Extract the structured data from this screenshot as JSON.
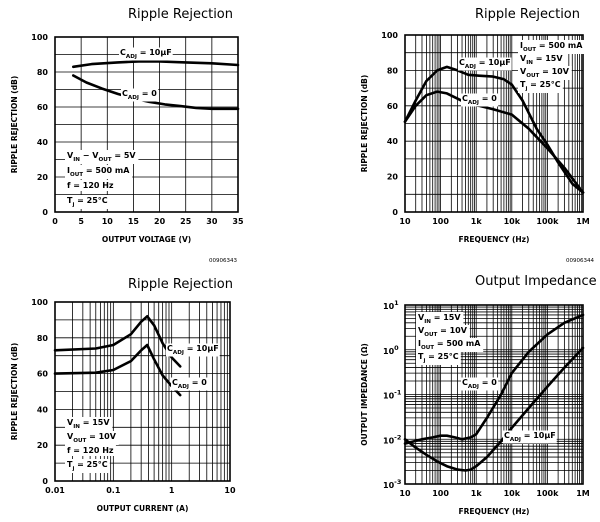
{
  "chart_data": [
    {
      "type": "line",
      "title": "Ripple Rejection",
      "xlabel": "OUTPUT VOLTAGE (V)",
      "ylabel": "RIPPLE REJECTION (dB)",
      "xscale": "linear",
      "yscale": "linear",
      "xlim": [
        0,
        35
      ],
      "ylim": [
        0,
        100
      ],
      "xticks": [
        "0",
        "5",
        "10",
        "15",
        "20",
        "25",
        "30",
        "35"
      ],
      "yticks": [
        "0",
        "20",
        "40",
        "60",
        "80",
        "100"
      ],
      "grid": true,
      "figure_code": "00906343",
      "conditions": [
        "VIN − VOUT = 5V",
        "IOUT = 500 mA",
        "f = 120 Hz",
        "Tj = 25°C"
      ],
      "series": [
        {
          "name": "CADJ = 10µF",
          "x": [
            3.5,
            7,
            12,
            16,
            20,
            25,
            30,
            35
          ],
          "y": [
            83,
            84.5,
            85.5,
            86,
            86,
            85.5,
            85,
            84
          ]
        },
        {
          "name": "CADJ = 0",
          "x": [
            3.5,
            6,
            9,
            12,
            15,
            18,
            21,
            24,
            27,
            30,
            35
          ],
          "y": [
            78,
            74,
            70.5,
            67.5,
            65,
            63,
            61.5,
            60.5,
            59.5,
            59,
            59
          ]
        }
      ]
    },
    {
      "type": "line",
      "title": "Ripple Rejection",
      "xlabel": "FREQUENCY (Hz)",
      "ylabel": "RIPPLE REJECTION (dB)",
      "xscale": "log",
      "yscale": "linear",
      "xlim": [
        10,
        1000000
      ],
      "ylim": [
        0,
        100
      ],
      "xticks": [
        "10",
        "100",
        "1k",
        "10k",
        "100k",
        "1M"
      ],
      "yticks": [
        "0",
        "20",
        "40",
        "60",
        "80",
        "100"
      ],
      "grid": true,
      "figure_code": "00906344",
      "conditions": [
        "IOUT = 500 mA",
        "VIN = 15V",
        "VOUT = 10V",
        "Tj = 25°C"
      ],
      "series": [
        {
          "name": "CADJ = 10µF",
          "x": [
            10,
            20,
            40,
            80,
            150,
            300,
            600,
            1200,
            3000,
            6000,
            10000,
            20000,
            50000,
            100000,
            200000,
            500000,
            1000000
          ],
          "y": [
            51,
            63,
            74,
            80,
            82,
            80,
            77.5,
            77,
            76.5,
            75,
            72,
            63,
            47,
            38,
            28,
            16,
            11
          ]
        },
        {
          "name": "CADJ = 0",
          "x": [
            10,
            20,
            40,
            80,
            150,
            300,
            600,
            1200,
            3000,
            10000,
            30000,
            100000,
            300000,
            1000000
          ],
          "y": [
            51,
            60,
            66,
            68,
            67,
            64,
            61,
            60,
            58,
            55,
            47,
            36,
            25,
            11
          ]
        }
      ]
    },
    {
      "type": "line",
      "title": "Ripple Rejection",
      "xlabel": "OUTPUT CURRENT (A)",
      "ylabel": "RIPPLE REJECTION (dB)",
      "xscale": "log",
      "yscale": "linear",
      "xlim": [
        0.01,
        10
      ],
      "ylim": [
        0,
        100
      ],
      "xticks": [
        "0.01",
        "0.1",
        "1",
        "10"
      ],
      "yticks": [
        "0",
        "20",
        "40",
        "60",
        "80",
        "100"
      ],
      "grid": true,
      "figure_code": "",
      "conditions": [
        "VIN = 15V",
        "VOUT = 10V",
        "f = 120 Hz",
        "Tj = 25°C"
      ],
      "series": [
        {
          "name": "CADJ = 10µF",
          "x": [
            0.01,
            0.05,
            0.1,
            0.2,
            0.3,
            0.38,
            0.5,
            0.7,
            1,
            1.4
          ],
          "y": [
            73,
            74,
            76,
            82,
            89,
            92,
            87,
            77,
            69,
            64
          ]
        },
        {
          "name": "CADJ = 0",
          "x": [
            0.01,
            0.05,
            0.1,
            0.2,
            0.3,
            0.38,
            0.5,
            0.7,
            1,
            1.4
          ],
          "y": [
            60,
            60.5,
            62,
            67,
            73,
            76,
            68,
            59,
            53,
            48
          ]
        }
      ]
    },
    {
      "type": "line",
      "title": "Output Impedance",
      "xlabel": "FREQUENCY (Hz)",
      "ylabel": "OUTPUT IMPEDANCE (Ω)",
      "xscale": "log",
      "yscale": "log",
      "xlim": [
        10,
        1000000
      ],
      "ylim": [
        0.001,
        10
      ],
      "xticks": [
        "10",
        "100",
        "1k",
        "10k",
        "100k",
        "1M"
      ],
      "yticks": [
        "10^-3",
        "10^-2",
        "10^-1",
        "10^0",
        "10^1"
      ],
      "grid": true,
      "figure_code": "",
      "conditions": [
        "VIN = 15V",
        "VOUT = 10V",
        "IOUT = 500 mA",
        "Tj = 25°C"
      ],
      "series": [
        {
          "name": "CADJ = 0",
          "x": [
            10,
            30,
            60,
            100,
            150,
            250,
            400,
            700,
            1000,
            2000,
            5000,
            10000,
            30000,
            100000,
            300000,
            1000000
          ],
          "y": [
            0.008,
            0.01,
            0.011,
            0.012,
            0.012,
            0.011,
            0.01,
            0.011,
            0.013,
            0.03,
            0.1,
            0.3,
            0.9,
            2.2,
            4,
            6
          ]
        },
        {
          "name": "CADJ = 10µF",
          "x": [
            10,
            20,
            40,
            80,
            150,
            300,
            500,
            700,
            1000,
            2000,
            5000,
            10000,
            30000,
            100000,
            300000,
            1000000
          ],
          "y": [
            0.01,
            0.0065,
            0.0045,
            0.0032,
            0.0025,
            0.0021,
            0.002,
            0.0021,
            0.0025,
            0.004,
            0.009,
            0.018,
            0.05,
            0.15,
            0.4,
            1.1
          ]
        }
      ]
    }
  ]
}
